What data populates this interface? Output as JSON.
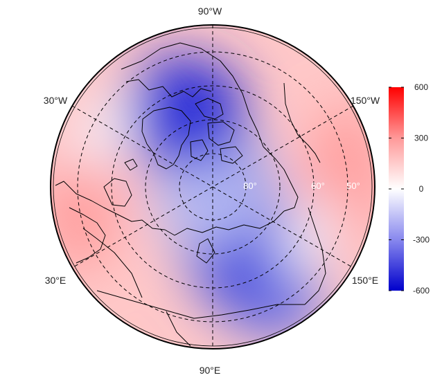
{
  "map": {
    "projection": "polar stereographic (north pole)",
    "field_colormap": "blue-white-red diverging",
    "longitude_labels": [
      {
        "id": "lon-90w",
        "text": "90°W"
      },
      {
        "id": "lon-30w",
        "text": "30°W"
      },
      {
        "id": "lon-150w",
        "text": "150°W"
      },
      {
        "id": "lon-30e",
        "text": "30°E"
      },
      {
        "id": "lon-150e",
        "text": "150°E"
      },
      {
        "id": "lon-90e",
        "text": "90°E"
      }
    ],
    "latitude_labels": [
      {
        "id": "lat-80",
        "text": "80°"
      },
      {
        "id": "lat-60",
        "text": "60°"
      },
      {
        "id": "lat-50",
        "text": "50°"
      }
    ]
  },
  "colorbar": {
    "range": [
      -600,
      600
    ],
    "ticks": [
      {
        "value": 600,
        "text": "600"
      },
      {
        "value": 300,
        "text": "300"
      },
      {
        "value": 0,
        "text": "0"
      },
      {
        "value": -300,
        "text": "-300"
      },
      {
        "value": -600,
        "text": "-600"
      }
    ],
    "colors": {
      "max": "#ff0000",
      "mid": "#ffffff",
      "min": "#0000cc"
    }
  }
}
